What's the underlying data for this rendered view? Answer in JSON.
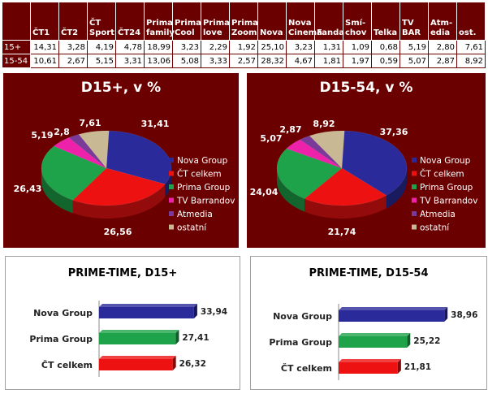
{
  "table": {
    "columns": [
      "ČT1",
      "ČT2",
      "ČT Sport",
      "ČT24",
      "Prima family",
      "Prima Cool",
      "Prima love",
      "Prima Zoom",
      "Nova",
      "Nova Cinema",
      "Fanda",
      "Smí-chov",
      "Telka",
      "TV BAR",
      "Atm-edia",
      "ost."
    ],
    "rows": [
      {
        "label": "15+",
        "values": [
          "14,31",
          "3,28",
          "4,19",
          "4,78",
          "18,99",
          "3,23",
          "2,29",
          "1,92",
          "25,10",
          "3,23",
          "1,31",
          "1,09",
          "0,68",
          "5,19",
          "2,80",
          "7,61"
        ]
      },
      {
        "label": "15-54",
        "values": [
          "10,61",
          "2,67",
          "5,15",
          "3,31",
          "13,06",
          "5,08",
          "3,33",
          "2,57",
          "28,32",
          "4,67",
          "1,81",
          "1,97",
          "0,59",
          "5,07",
          "2,87",
          "8,92"
        ]
      }
    ]
  },
  "colors": {
    "maroon": "#6b0000",
    "nova": "#2a2a9a",
    "ct": "#ee1111",
    "prima": "#1fa34a",
    "barrandov": "#ee22aa",
    "atmedia": "#7a3a9a",
    "ostatni": "#c9b894"
  },
  "chart_data": [
    {
      "type": "pie",
      "title": "D15+, v %",
      "legend_position": "right",
      "slices": [
        {
          "name": "Nova Group",
          "value": 31.41,
          "label": "31,41"
        },
        {
          "name": "ČT celkem",
          "value": 26.56,
          "label": "26,56"
        },
        {
          "name": "Prima Group",
          "value": 26.43,
          "label": "26,43"
        },
        {
          "name": "TV Barrandov",
          "value": 5.19,
          "label": "5,19"
        },
        {
          "name": "Atmedia",
          "value": 2.8,
          "label": "2,8"
        },
        {
          "name": "ostatní",
          "value": 7.61,
          "label": "7,61"
        }
      ]
    },
    {
      "type": "pie",
      "title": "D15-54, v %",
      "legend_position": "right",
      "slices": [
        {
          "name": "Nova Group",
          "value": 37.36,
          "label": "37,36"
        },
        {
          "name": "ČT celkem",
          "value": 21.74,
          "label": "21,74"
        },
        {
          "name": "Prima Group",
          "value": 24.04,
          "label": "24,04"
        },
        {
          "name": "TV Barrandov",
          "value": 5.07,
          "label": "5,07"
        },
        {
          "name": "Atmedia",
          "value": 2.87,
          "label": "2,87"
        },
        {
          "name": "ostatní",
          "value": 8.92,
          "label": "8,92"
        }
      ]
    },
    {
      "type": "bar",
      "orientation": "horizontal",
      "title": "PRIME-TIME, D15+",
      "categories": [
        "Nova Group",
        "Prima Group",
        "ČT celkem"
      ],
      "values": [
        33.94,
        27.41,
        26.32
      ],
      "labels": [
        "33,94",
        "27,41",
        "26,32"
      ],
      "xlim": [
        0,
        36
      ]
    },
    {
      "type": "bar",
      "orientation": "horizontal",
      "title": "PRIME-TIME, D15-54",
      "categories": [
        "Nova Group",
        "Prima Group",
        "ČT celkem"
      ],
      "values": [
        38.96,
        25.22,
        21.81
      ],
      "labels": [
        "38,96",
        "25,22",
        "21,81"
      ],
      "xlim": [
        0,
        41
      ]
    }
  ]
}
